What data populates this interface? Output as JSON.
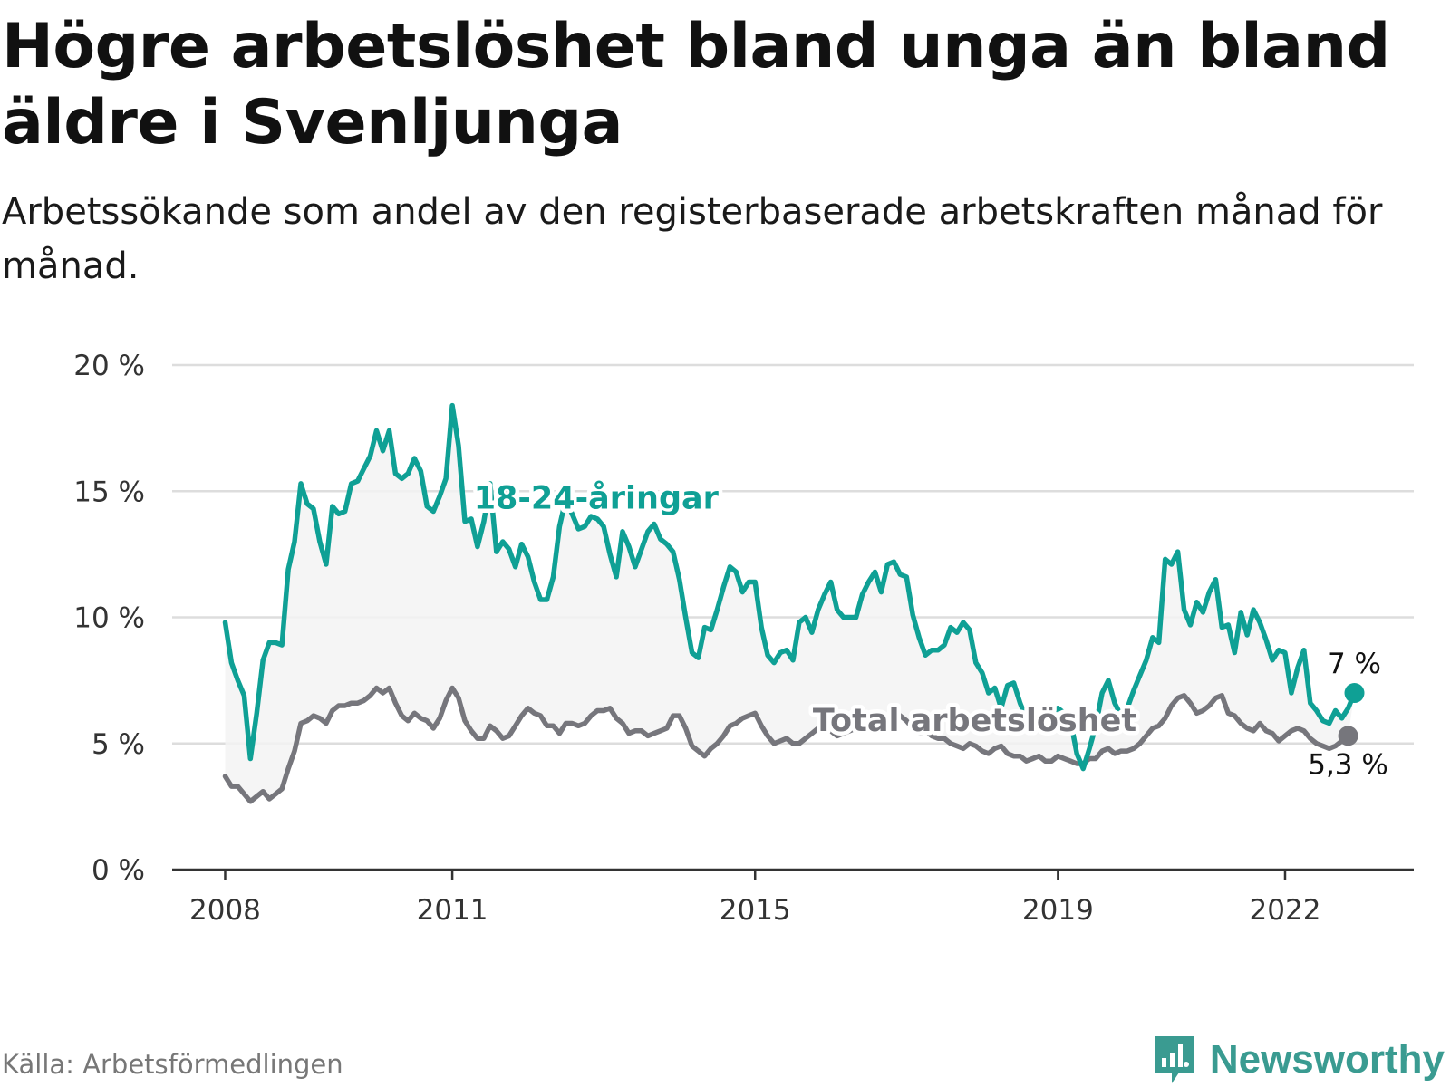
{
  "title": "Högre arbetslöshet bland unga än bland äldre i Svenljunga",
  "subtitle": "Arbetssökande som andel av den registerbaserade arbetskraften månad för månad.",
  "source": "Källa: Arbetsförmedlingen",
  "brand": {
    "name": "Newsworthy",
    "icon": "newsworthy-logo-icon",
    "color": "#3a9b91"
  },
  "colors": {
    "young": "#0fa095",
    "total": "#76767c",
    "grid": "#dddddd",
    "axis": "#333333",
    "band": "#f3f3f3"
  },
  "chart_data": {
    "type": "line",
    "title": "",
    "xlabel": "",
    "ylabel": "",
    "ylim": [
      0,
      20
    ],
    "xlim": [
      2007.3,
      2023.7
    ],
    "yticks": [
      0,
      5,
      10,
      15,
      20
    ],
    "ytick_labels": [
      "0 %",
      "5 %",
      "10 %",
      "15 %",
      "20 %"
    ],
    "xticks": [
      2008,
      2011,
      2015,
      2019,
      2022
    ],
    "xtick_labels": [
      "2008",
      "2011",
      "2015",
      "2019",
      "2022"
    ],
    "grid": true,
    "series": [
      {
        "name": "18-24-åringar",
        "key": "young",
        "end_label": "7 %",
        "x_start": 2008.0,
        "x_step": 0.08333,
        "values": [
          9.8,
          8.2,
          7.5,
          6.9,
          4.4,
          6.2,
          8.3,
          9.0,
          9.0,
          8.9,
          11.9,
          13.0,
          15.3,
          14.5,
          14.3,
          13.0,
          12.1,
          14.4,
          14.1,
          14.2,
          15.3,
          15.4,
          15.9,
          16.4,
          17.4,
          16.6,
          17.4,
          15.7,
          15.5,
          15.7,
          16.3,
          15.8,
          14.4,
          14.2,
          14.8,
          15.5,
          18.4,
          16.8,
          13.8,
          13.9,
          12.8,
          13.8,
          15.3,
          12.6,
          13.0,
          12.7,
          12.0,
          12.9,
          12.4,
          11.4,
          10.7,
          10.7,
          11.6,
          13.6,
          14.7,
          14.1,
          13.5,
          13.6,
          14.0,
          13.9,
          13.6,
          12.5,
          11.6,
          13.4,
          12.8,
          12.0,
          12.7,
          13.4,
          13.7,
          13.1,
          12.9,
          12.6,
          11.5,
          10.0,
          8.6,
          8.4,
          9.6,
          9.5,
          10.3,
          11.2,
          12.0,
          11.8,
          11.0,
          11.4,
          11.4,
          9.6,
          8.5,
          8.2,
          8.6,
          8.7,
          8.3,
          9.8,
          10.0,
          9.4,
          10.3,
          10.9,
          11.4,
          10.3,
          10.0,
          10.0,
          10.0,
          10.9,
          11.4,
          11.8,
          11.0,
          12.1,
          12.2,
          11.7,
          11.6,
          10.1,
          9.2,
          8.5,
          8.7,
          8.7,
          8.9,
          9.6,
          9.4,
          9.8,
          9.5,
          8.2,
          7.8,
          7.0,
          7.2,
          6.4,
          7.3,
          7.4,
          6.6,
          6.0,
          5.9,
          6.1,
          6.0,
          6.2,
          6.4,
          6.2,
          5.9,
          4.6,
          4.0,
          4.8,
          5.7,
          7.0,
          7.5,
          6.6,
          6.1,
          6.4,
          7.1,
          7.7,
          8.3,
          9.2,
          9.0,
          12.3,
          12.1,
          12.6,
          10.3,
          9.7,
          10.6,
          10.2,
          11.0,
          11.5,
          9.6,
          9.7,
          8.6,
          10.2,
          9.3,
          10.3,
          9.8,
          9.1,
          8.3,
          8.7,
          8.6,
          7.0,
          8.0,
          8.7,
          6.6,
          6.3,
          5.9,
          5.8,
          6.3,
          6.0,
          6.4,
          7.0
        ]
      },
      {
        "name": "Total arbetslöshet",
        "key": "total",
        "end_label": "5,3 %",
        "x_start": 2008.0,
        "x_step": 0.08333,
        "values": [
          3.7,
          3.3,
          3.3,
          3.0,
          2.7,
          2.9,
          3.1,
          2.8,
          3.0,
          3.2,
          4.0,
          4.7,
          5.8,
          5.9,
          6.1,
          6.0,
          5.8,
          6.3,
          6.5,
          6.5,
          6.6,
          6.6,
          6.7,
          6.9,
          7.2,
          7.0,
          7.2,
          6.6,
          6.1,
          5.9,
          6.2,
          6.0,
          5.9,
          5.6,
          6.0,
          6.7,
          7.2,
          6.8,
          5.9,
          5.5,
          5.2,
          5.2,
          5.7,
          5.5,
          5.2,
          5.3,
          5.7,
          6.1,
          6.4,
          6.2,
          6.1,
          5.7,
          5.7,
          5.4,
          5.8,
          5.8,
          5.7,
          5.8,
          6.1,
          6.3,
          6.3,
          6.4,
          6.0,
          5.8,
          5.4,
          5.5,
          5.5,
          5.3,
          5.4,
          5.5,
          5.6,
          6.1,
          6.1,
          5.6,
          4.9,
          4.7,
          4.5,
          4.8,
          5.0,
          5.3,
          5.7,
          5.8,
          6.0,
          6.1,
          6.2,
          5.7,
          5.3,
          5.0,
          5.1,
          5.2,
          5.0,
          5.0,
          5.2,
          5.4,
          5.6,
          5.6,
          5.5,
          5.3,
          5.4,
          5.5,
          5.6,
          5.7,
          5.9,
          6.0,
          6.1,
          6.1,
          6.2,
          6.1,
          5.9,
          5.6,
          5.4,
          5.5,
          5.3,
          5.2,
          5.2,
          5.0,
          4.9,
          4.8,
          5.0,
          4.9,
          4.7,
          4.6,
          4.8,
          4.9,
          4.6,
          4.5,
          4.5,
          4.3,
          4.4,
          4.5,
          4.3,
          4.3,
          4.5,
          4.4,
          4.3,
          4.2,
          4.2,
          4.4,
          4.4,
          4.7,
          4.8,
          4.6,
          4.7,
          4.7,
          4.8,
          5.0,
          5.3,
          5.6,
          5.7,
          6.0,
          6.5,
          6.8,
          6.9,
          6.6,
          6.2,
          6.3,
          6.5,
          6.8,
          6.9,
          6.2,
          6.1,
          5.8,
          5.6,
          5.5,
          5.8,
          5.5,
          5.4,
          5.1,
          5.3,
          5.5,
          5.6,
          5.5,
          5.2,
          5.0,
          4.9,
          4.8,
          4.9,
          5.1,
          5.3
        ]
      }
    ],
    "annotations": [
      {
        "text": "18-24-åringar",
        "series": "young",
        "x": 2012.9,
        "y": 14.3
      },
      {
        "text": "Total arbetslöshet",
        "series": "total",
        "x": 2017.9,
        "y": 5.5
      }
    ]
  }
}
